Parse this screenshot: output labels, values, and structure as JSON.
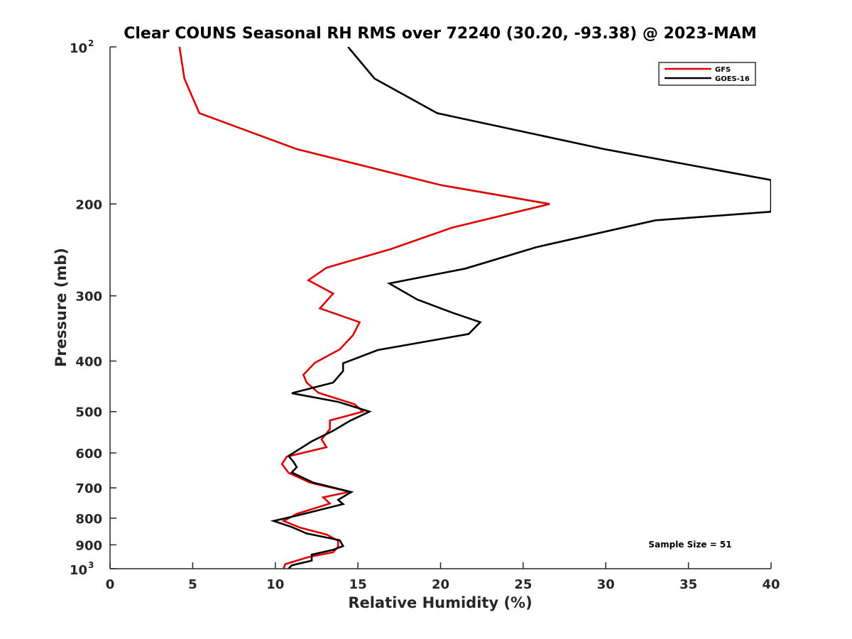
{
  "chart_data": {
    "type": "line",
    "title": "Clear COUNS Seasonal RH RMS over 72240 (30.20, -93.38) @ 2023-MAM",
    "xlabel": "Relative Humidity (%)",
    "ylabel": "Pressure (mb)",
    "xlim": [
      0,
      40
    ],
    "ylim": [
      100,
      1000
    ],
    "yscale": "log",
    "y_reversed": true,
    "grid": false,
    "legend_position": "top-right",
    "x_ticks": [
      "0",
      "5",
      "10",
      "15",
      "20",
      "25",
      "30",
      "35",
      "40"
    ],
    "y_ticks": [
      {
        "value": 100,
        "base": "10",
        "sup": "2"
      },
      {
        "value": 200,
        "label": "200"
      },
      {
        "value": 300,
        "label": "300"
      },
      {
        "value": 400,
        "label": "400"
      },
      {
        "value": 500,
        "label": "500"
      },
      {
        "value": 600,
        "label": "600"
      },
      {
        "value": 700,
        "label": "700"
      },
      {
        "value": 800,
        "label": "800"
      },
      {
        "value": 900,
        "label": "900"
      },
      {
        "value": 1000,
        "base": "10",
        "sup": "3"
      }
    ],
    "annotation": "Sample Size = 51",
    "series": [
      {
        "name": "GFS",
        "color": "#dd0000",
        "points": [
          [
            4.2,
            100
          ],
          [
            4.5,
            115
          ],
          [
            5.4,
            134
          ],
          [
            11.3,
            157
          ],
          [
            20.0,
            184
          ],
          [
            26.6,
            200
          ],
          [
            20.7,
            222
          ],
          [
            17.0,
            244
          ],
          [
            13.1,
            265
          ],
          [
            12.0,
            280
          ],
          [
            13.5,
            297
          ],
          [
            12.7,
            317
          ],
          [
            15.1,
            337
          ],
          [
            14.7,
            357
          ],
          [
            13.9,
            380
          ],
          [
            12.4,
            403
          ],
          [
            11.7,
            425
          ],
          [
            11.9,
            440
          ],
          [
            12.6,
            460
          ],
          [
            14.8,
            484
          ],
          [
            15.3,
            500
          ],
          [
            13.3,
            520
          ],
          [
            13.3,
            540
          ],
          [
            12.8,
            565
          ],
          [
            13.1,
            585
          ],
          [
            10.7,
            610
          ],
          [
            10.4,
            630
          ],
          [
            10.8,
            655
          ],
          [
            12.1,
            684
          ],
          [
            14.5,
            712
          ],
          [
            12.9,
            730
          ],
          [
            13.3,
            750
          ],
          [
            11.3,
            785
          ],
          [
            10.5,
            810
          ],
          [
            11.5,
            834
          ],
          [
            13.1,
            860
          ],
          [
            13.8,
            884
          ],
          [
            13.8,
            908
          ],
          [
            13.5,
            930
          ],
          [
            12.0,
            950
          ],
          [
            10.6,
            980
          ],
          [
            10.5,
            1000
          ]
        ]
      },
      {
        "name": "GOES-16",
        "color": "#000000",
        "points": [
          [
            14.4,
            100
          ],
          [
            16.0,
            115
          ],
          [
            19.8,
            134
          ],
          [
            29.9,
            157
          ],
          [
            40.0,
            180
          ],
          [
            40.0,
            207
          ],
          [
            33.0,
            215
          ],
          [
            25.8,
            242
          ],
          [
            21.5,
            266
          ],
          [
            16.9,
            284
          ],
          [
            18.6,
            305
          ],
          [
            20.7,
            323
          ],
          [
            22.4,
            337
          ],
          [
            21.7,
            355
          ],
          [
            16.2,
            381
          ],
          [
            14.1,
            404
          ],
          [
            14.1,
            418
          ],
          [
            13.5,
            440
          ],
          [
            11.0,
            461
          ],
          [
            13.8,
            479
          ],
          [
            15.7,
            500
          ],
          [
            14.5,
            521
          ],
          [
            13.5,
            544
          ],
          [
            12.2,
            570
          ],
          [
            10.8,
            608
          ],
          [
            11.1,
            624
          ],
          [
            11.3,
            639
          ],
          [
            11.0,
            654
          ],
          [
            12.3,
            684
          ],
          [
            14.6,
            713
          ],
          [
            13.8,
            738
          ],
          [
            14.1,
            752
          ],
          [
            11.3,
            791
          ],
          [
            9.9,
            810
          ],
          [
            11.0,
            832
          ],
          [
            11.9,
            856
          ],
          [
            13.9,
            882
          ],
          [
            14.1,
            905
          ],
          [
            13.5,
            920
          ],
          [
            12.2,
            940
          ],
          [
            12.2,
            965
          ],
          [
            11.0,
            985
          ],
          [
            10.8,
            1000
          ]
        ]
      }
    ]
  }
}
